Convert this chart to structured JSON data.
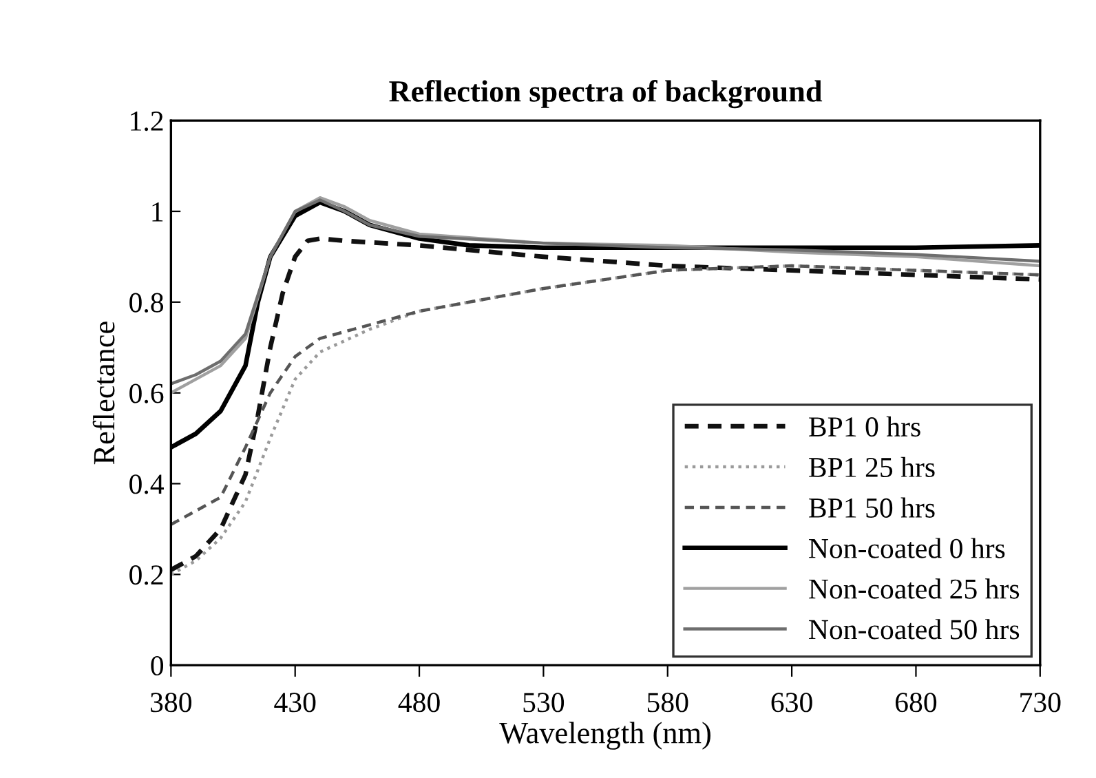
{
  "chart_data": {
    "type": "line",
    "title": "Reflection spectra of background",
    "xlabel": "Wavelength (nm)",
    "ylabel": "Reflectance",
    "xlim": [
      380,
      730
    ],
    "xticks": [
      380,
      430,
      480,
      530,
      580,
      630,
      680,
      730
    ],
    "ylim": [
      0,
      1.2
    ],
    "yticks": [
      0,
      0.2,
      0.4,
      0.6,
      0.8,
      1,
      1.2
    ],
    "grid": false,
    "legend": "bottom right",
    "marker": "none",
    "series": [
      {
        "name": "BP1 0 hrs",
        "color": "#111111",
        "line_style": "dashed",
        "x": [
          380,
          390,
          400,
          410,
          415,
          420,
          425,
          430,
          435,
          440,
          450,
          480,
          530,
          580,
          630,
          680,
          730
        ],
        "values": [
          0.21,
          0.24,
          0.3,
          0.42,
          0.55,
          0.7,
          0.82,
          0.9,
          0.935,
          0.94,
          0.935,
          0.925,
          0.9,
          0.88,
          0.87,
          0.86,
          0.85
        ]
      },
      {
        "name": "BP1 25 hrs",
        "color": "#9a9a9a",
        "line_style": "dotted",
        "x": [
          380,
          390,
          400,
          410,
          420,
          430,
          440,
          460,
          480,
          530,
          580,
          630,
          680,
          730
        ],
        "values": [
          0.2,
          0.23,
          0.28,
          0.36,
          0.5,
          0.63,
          0.69,
          0.74,
          0.78,
          0.83,
          0.87,
          0.88,
          0.87,
          0.86
        ]
      },
      {
        "name": "BP1 50 hrs",
        "color": "#555555",
        "line_style": "dashed",
        "x": [
          380,
          390,
          400,
          410,
          420,
          430,
          440,
          460,
          480,
          530,
          580,
          630,
          680,
          730
        ],
        "values": [
          0.31,
          0.34,
          0.37,
          0.48,
          0.6,
          0.68,
          0.72,
          0.75,
          0.78,
          0.83,
          0.87,
          0.88,
          0.87,
          0.86
        ]
      },
      {
        "name": "Non-coated 0 hrs",
        "color": "#000000",
        "line_style": "solid",
        "x": [
          380,
          390,
          400,
          410,
          415,
          420,
          430,
          440,
          450,
          460,
          480,
          500,
          530,
          580,
          630,
          680,
          730
        ],
        "values": [
          0.48,
          0.51,
          0.56,
          0.66,
          0.8,
          0.9,
          0.99,
          1.02,
          1.0,
          0.97,
          0.94,
          0.925,
          0.92,
          0.92,
          0.92,
          0.92,
          0.925
        ]
      },
      {
        "name": "Non-coated 25 hrs",
        "color": "#a0a0a0",
        "line_style": "solid",
        "x": [
          380,
          390,
          400,
          410,
          420,
          430,
          440,
          450,
          460,
          480,
          530,
          580,
          630,
          680,
          730
        ],
        "values": [
          0.6,
          0.63,
          0.66,
          0.72,
          0.9,
          1.0,
          1.03,
          1.01,
          0.98,
          0.95,
          0.93,
          0.925,
          0.91,
          0.9,
          0.88
        ]
      },
      {
        "name": "Non-coated 50 hrs",
        "color": "#6e6e6e",
        "line_style": "solid",
        "x": [
          380,
          390,
          400,
          410,
          420,
          430,
          440,
          450,
          460,
          480,
          530,
          580,
          630,
          680,
          730
        ],
        "values": [
          0.62,
          0.64,
          0.67,
          0.73,
          0.9,
          1.0,
          1.025,
          1.0,
          0.97,
          0.945,
          0.93,
          0.92,
          0.915,
          0.905,
          0.89
        ]
      }
    ]
  }
}
